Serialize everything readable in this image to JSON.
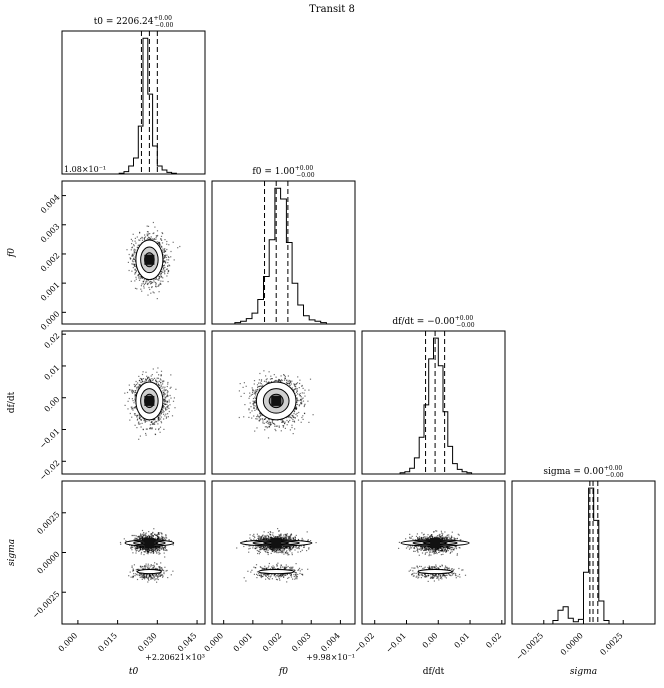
{
  "figure": {
    "title": "Transit 8",
    "colors": {
      "ink": "#000000",
      "contour_fill_light": "#cfcfcf",
      "contour_fill_mid": "#9a9a9a",
      "contour_fill_dark": "#5a5a5a",
      "background": "#ffffff"
    }
  },
  "chart_data": {
    "type": "corner",
    "parameters": [
      {
        "key": "t0",
        "label": "t0",
        "title": "t0 = 2206.24",
        "sup": "+0.00",
        "sub": "−0.00",
        "ticks": [
          "0.000",
          "0.015",
          "0.030",
          "0.045"
        ],
        "offset": "+2.20621×10³",
        "top_ticks": [
          "1.08×10⁻¹"
        ],
        "lim": [
          -0.006,
          0.048
        ],
        "peak": 0.027,
        "sd": 0.003,
        "quantiles": [
          0.024,
          0.027,
          0.03
        ]
      },
      {
        "key": "f0",
        "label": "f0",
        "title": "f0 = 1.00",
        "sup": "+0.00",
        "sub": "−0.00",
        "ticks": [
          "0.000",
          "0.001",
          "0.002",
          "0.003",
          "0.004"
        ],
        "offset": "+9.98×10⁻¹",
        "lim": [
          -0.0004,
          0.0045
        ],
        "peak": 0.0018,
        "sd": 0.0004,
        "quantiles": [
          0.0014,
          0.0018,
          0.0022
        ]
      },
      {
        "key": "dfdt",
        "label": "df/dt",
        "title": "df/dt = −0.00",
        "sup": "+0.00",
        "sub": "−0.00",
        "ticks": [
          "−0.02",
          "−0.01",
          "0.00",
          "0.01",
          "0.02"
        ],
        "lim": [
          -0.024,
          0.021
        ],
        "peak": -0.001,
        "sd": 0.0035,
        "quantiles": [
          -0.004,
          -0.001,
          0.002
        ]
      },
      {
        "key": "sigma",
        "label": "sigma",
        "title": "sigma = 0.00",
        "sup": "+0.00",
        "sub": "−0.00",
        "ticks": [
          "−0.0025",
          "0.0000",
          "0.0025"
        ],
        "lim": [
          -0.0045,
          0.0045
        ],
        "peak": 0.0006,
        "sd": 0.0002,
        "quantiles": [
          0.0004,
          0.0006,
          0.0009
        ]
      }
    ],
    "row_ticks": {
      "f0": [
        "0.000",
        "0.001",
        "0.002",
        "0.003",
        "0.004"
      ],
      "dfdt": [
        "−0.02",
        "−0.01",
        "0.00",
        "0.01",
        "0.02"
      ],
      "sigma": [
        "−0.0025",
        "0.0000",
        "0.0025"
      ]
    },
    "histograms": {
      "t0": [
        0,
        0,
        0,
        0,
        0,
        0,
        0,
        0,
        0,
        0,
        0,
        0,
        1,
        3,
        10,
        20,
        60,
        170,
        100,
        35,
        10,
        5,
        2,
        1,
        0,
        0,
        0,
        0,
        0,
        0
      ],
      "f0": [
        0,
        0,
        0,
        0,
        1,
        2,
        4,
        8,
        18,
        35,
        62,
        100,
        92,
        60,
        30,
        14,
        6,
        3,
        2,
        1,
        0,
        0,
        0,
        0,
        0
      ],
      "dfdt": [
        0,
        0,
        0,
        0,
        0,
        0,
        0,
        0,
        1,
        2,
        5,
        14,
        32,
        60,
        100,
        118,
        94,
        54,
        24,
        9,
        4,
        2,
        1,
        0,
        0,
        0,
        0,
        0,
        0,
        0
      ],
      "sigma": [
        0,
        0,
        0,
        0,
        0,
        0,
        0,
        0,
        3,
        12,
        15,
        5,
        2,
        4,
        45,
        118,
        90,
        20,
        3,
        0,
        0,
        0,
        0,
        0,
        0,
        0,
        0,
        0
      ]
    }
  }
}
